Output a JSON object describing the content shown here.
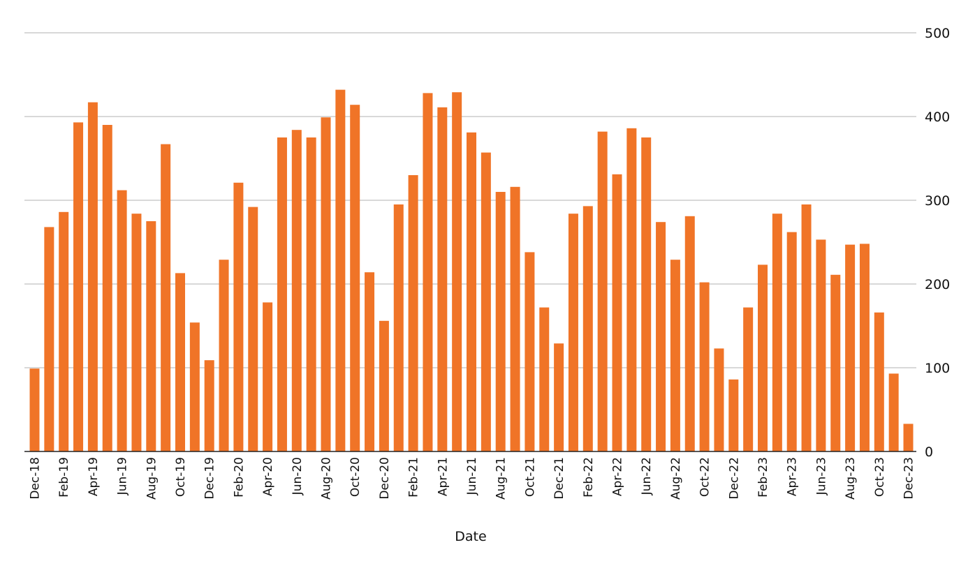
{
  "chart_data": {
    "type": "bar",
    "title": "",
    "xlabel": "Date",
    "ylabel": "",
    "ylim": [
      0,
      500
    ],
    "yticks": [
      0,
      100,
      200,
      300,
      400,
      500
    ],
    "y_axis_side": "right",
    "grid": true,
    "legend": "none",
    "bar_color": "#F07427",
    "categories": [
      "Dec-18",
      "Jan-19",
      "Feb-19",
      "Mar-19",
      "Apr-19",
      "May-19",
      "Jun-19",
      "Jul-19",
      "Aug-19",
      "Sep-19",
      "Oct-19",
      "Nov-19",
      "Dec-19",
      "Jan-20",
      "Feb-20",
      "Mar-20",
      "Apr-20",
      "May-20",
      "Jun-20",
      "Jul-20",
      "Aug-20",
      "Sep-20",
      "Oct-20",
      "Nov-20",
      "Dec-20",
      "Jan-21",
      "Feb-21",
      "Mar-21",
      "Apr-21",
      "May-21",
      "Jun-21",
      "Jul-21",
      "Aug-21",
      "Sep-21",
      "Oct-21",
      "Nov-21",
      "Dec-21",
      "Jan-22",
      "Feb-22",
      "Mar-22",
      "Apr-22",
      "May-22",
      "Jun-22",
      "Jul-22",
      "Aug-22",
      "Sep-22",
      "Oct-22",
      "Nov-22",
      "Dec-22",
      "Jan-23",
      "Feb-23",
      "Mar-23",
      "Apr-23",
      "May-23",
      "Jun-23",
      "Jul-23",
      "Aug-23",
      "Sep-23",
      "Oct-23",
      "Nov-23",
      "Dec-23"
    ],
    "x_tick_labels": [
      "Dec-18",
      "Feb-19",
      "Apr-19",
      "Jun-19",
      "Aug-19",
      "Oct-19",
      "Dec-19",
      "Feb-20",
      "Apr-20",
      "Jun-20",
      "Aug-20",
      "Oct-20",
      "Dec-20",
      "Feb-21",
      "Apr-21",
      "Jun-21",
      "Aug-21",
      "Oct-21",
      "Dec-21",
      "Feb-22",
      "Apr-22",
      "Jun-22",
      "Aug-22",
      "Oct-22",
      "Dec-22",
      "Feb-23",
      "Apr-23",
      "Jun-23",
      "Aug-23",
      "Oct-23",
      "Dec-23"
    ],
    "values": [
      99,
      268,
      286,
      393,
      417,
      390,
      312,
      284,
      275,
      367,
      213,
      154,
      109,
      229,
      321,
      292,
      178,
      375,
      384,
      375,
      399,
      432,
      414,
      214,
      156,
      295,
      330,
      428,
      411,
      429,
      381,
      357,
      310,
      316,
      238,
      172,
      129,
      284,
      293,
      382,
      331,
      386,
      375,
      274,
      229,
      281,
      202,
      123,
      86,
      172,
      223,
      284,
      262,
      295,
      253,
      211,
      247,
      248,
      166,
      93,
      33
    ]
  }
}
